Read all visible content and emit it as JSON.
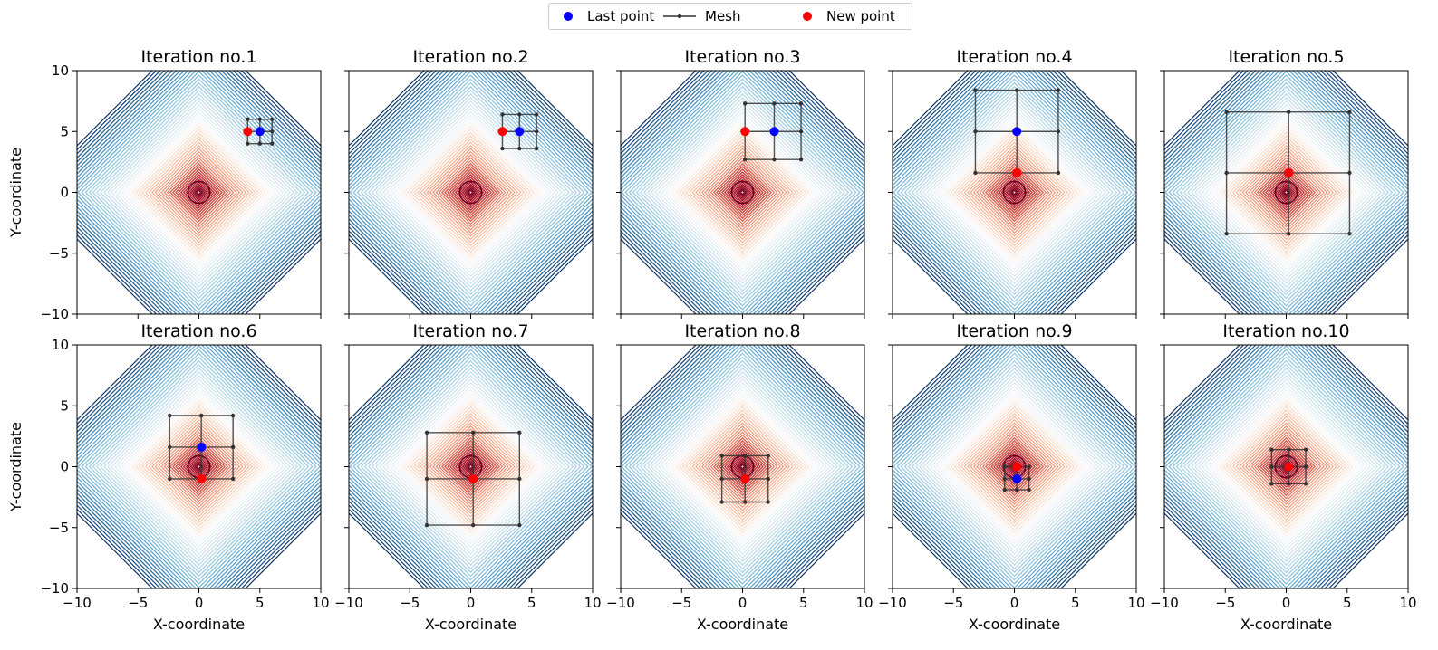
{
  "legend": {
    "last_point": "Last point",
    "mesh": "Mesh",
    "new_point": "New point"
  },
  "colors": {
    "last_point": "#0000ff",
    "new_point": "#ff0000",
    "mesh": "#333333",
    "contour_center": "#67001f",
    "contour_edge": "#053061"
  },
  "chart_data": {
    "type": "scatter",
    "layout": "2x5 grid of contour plots",
    "colormap": "RdBu",
    "axes": {
      "xlabel": "X-coordinate",
      "ylabel": "Y-coordinate",
      "xlim": [
        -10,
        10
      ],
      "ylim": [
        -10,
        10
      ],
      "xticks": [
        -10,
        -5,
        0,
        5,
        10
      ],
      "yticks": [
        -10,
        -5,
        0,
        5,
        10
      ]
    },
    "panels": [
      {
        "title": "Iteration no.1",
        "last": [
          5,
          5
        ],
        "new": [
          4,
          5
        ],
        "mesh_x": [
          4,
          5,
          6
        ],
        "mesh_y": [
          4,
          5,
          6
        ]
      },
      {
        "title": "Iteration no.2",
        "last": [
          4,
          5
        ],
        "new": [
          2.6,
          5
        ],
        "mesh_x": [
          2.6,
          4,
          5.4
        ],
        "mesh_y": [
          3.6,
          5,
          6.4
        ]
      },
      {
        "title": "Iteration no.3",
        "last": [
          2.6,
          5
        ],
        "new": [
          0.2,
          5
        ],
        "mesh_x": [
          0.2,
          2.6,
          4.8
        ],
        "mesh_y": [
          2.7,
          5,
          7.3
        ]
      },
      {
        "title": "Iteration no.4",
        "last": [
          0.2,
          5
        ],
        "new": [
          0.2,
          1.6
        ],
        "mesh_x": [
          -3.2,
          0.2,
          3.6
        ],
        "mesh_y": [
          1.6,
          5,
          8.4
        ]
      },
      {
        "title": "Iteration no.5",
        "last": [
          0.2,
          1.6
        ],
        "new": [
          0.2,
          1.6
        ],
        "mesh_x": [
          -4.9,
          0.2,
          5.2
        ],
        "mesh_y": [
          -3.4,
          1.6,
          6.6
        ]
      },
      {
        "title": "Iteration no.6",
        "last": [
          0.2,
          1.6
        ],
        "new": [
          0.2,
          -1
        ],
        "mesh_x": [
          -2.4,
          0.2,
          2.8
        ],
        "mesh_y": [
          -1,
          1.6,
          4.2
        ]
      },
      {
        "title": "Iteration no.7",
        "last": [
          0.2,
          -1
        ],
        "new": [
          0.2,
          -1
        ],
        "mesh_x": [
          -3.6,
          0.2,
          4
        ],
        "mesh_y": [
          -4.8,
          -1,
          2.8
        ]
      },
      {
        "title": "Iteration no.8",
        "last": [
          0.2,
          -1
        ],
        "new": [
          0.2,
          -1
        ],
        "mesh_x": [
          -1.7,
          0.2,
          2.1
        ],
        "mesh_y": [
          -2.9,
          -1,
          0.9
        ]
      },
      {
        "title": "Iteration no.9",
        "last": [
          0.2,
          -1
        ],
        "new": [
          0.2,
          0
        ],
        "mesh_x": [
          -0.8,
          0.2,
          1.2
        ],
        "mesh_y": [
          -1.9,
          -1,
          0
        ]
      },
      {
        "title": "Iteration no.10",
        "last": [
          0.2,
          0
        ],
        "new": [
          0.2,
          0
        ],
        "mesh_x": [
          -1.2,
          0.2,
          1.6
        ],
        "mesh_y": [
          -1.4,
          0,
          1.4
        ]
      }
    ]
  }
}
